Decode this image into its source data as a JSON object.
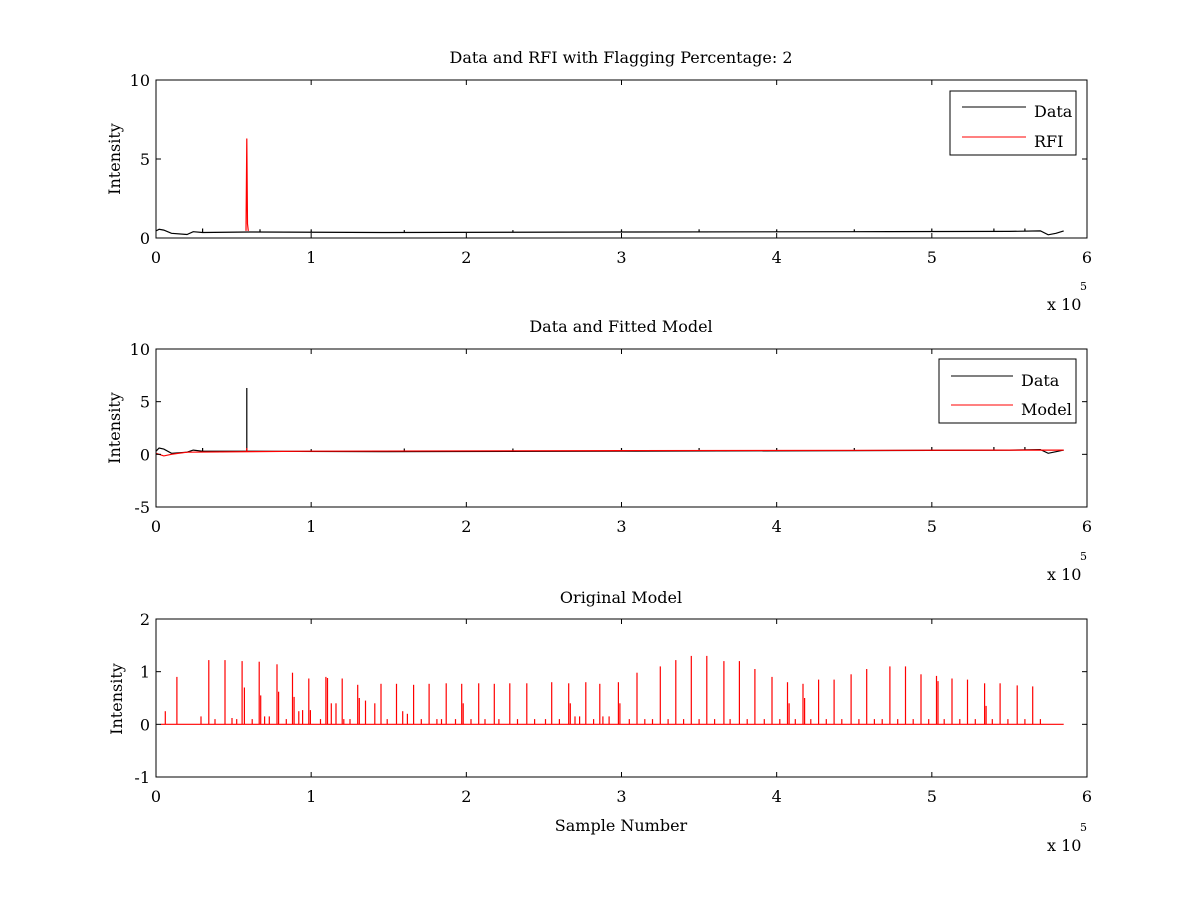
{
  "chart_data": [
    {
      "type": "line",
      "title": "Data and RFI with Flagging Percentage: 2",
      "xlabel": "",
      "ylabel": "Intensity",
      "xlim": [
        0,
        600000
      ],
      "ylim": [
        0,
        10
      ],
      "x_ticks": [
        "0",
        "1",
        "2",
        "3",
        "4",
        "5",
        "6"
      ],
      "y_ticks": [
        "0",
        "5",
        "10"
      ],
      "x_multiplier": {
        "base": "x 10",
        "power": "5"
      },
      "legend": {
        "position": "top-right",
        "entries": [
          {
            "label": "Data",
            "color": "#000000"
          },
          {
            "label": "RFI",
            "color": "#ff0000"
          }
        ]
      },
      "series": [
        {
          "name": "Data",
          "color": "#000000",
          "baseline": [
            [
              0,
              0.45
            ],
            [
              2000,
              0.55
            ],
            [
              5000,
              0.5
            ],
            [
              10000,
              0.3
            ],
            [
              20000,
              0.22
            ],
            [
              24000,
              0.4
            ],
            [
              30000,
              0.35
            ],
            [
              60000,
              0.38
            ],
            [
              150000,
              0.35
            ],
            [
              300000,
              0.38
            ],
            [
              450000,
              0.4
            ],
            [
              550000,
              0.42
            ],
            [
              570000,
              0.45
            ],
            [
              575000,
              0.2
            ],
            [
              580000,
              0.3
            ],
            [
              585000,
              0.45
            ]
          ],
          "spikes": [
            [
              30000,
              0.6
            ],
            [
              67000,
              0.55
            ],
            [
              100000,
              0.55
            ],
            [
              160000,
              0.5
            ],
            [
              230000,
              0.5
            ],
            [
              300000,
              0.55
            ],
            [
              350000,
              0.55
            ],
            [
              400000,
              0.55
            ],
            [
              450000,
              0.55
            ],
            [
              500000,
              0.6
            ],
            [
              540000,
              0.6
            ],
            [
              560000,
              0.6
            ]
          ]
        },
        {
          "name": "RFI",
          "color": "#ff0000",
          "points": [
            [
              58000,
              0.45
            ],
            [
              58500,
              6.3
            ],
            [
              59000,
              0.9
            ],
            [
              59500,
              0.45
            ]
          ]
        }
      ]
    },
    {
      "type": "line",
      "title": "Data and Fitted Model",
      "xlabel": "",
      "ylabel": "Intensity",
      "xlim": [
        0,
        600000
      ],
      "ylim": [
        -5,
        10
      ],
      "x_ticks": [
        "0",
        "1",
        "2",
        "3",
        "4",
        "5",
        "6"
      ],
      "y_ticks": [
        "-5",
        "0",
        "5",
        "10"
      ],
      "x_multiplier": {
        "base": "x 10",
        "power": "5"
      },
      "legend": {
        "position": "top-right",
        "entries": [
          {
            "label": "Data",
            "color": "#000000"
          },
          {
            "label": "Model",
            "color": "#ff0000"
          }
        ]
      },
      "series": [
        {
          "name": "Data",
          "color": "#000000",
          "baseline": [
            [
              0,
              0.3
            ],
            [
              2000,
              0.6
            ],
            [
              5000,
              0.5
            ],
            [
              10000,
              0.1
            ],
            [
              20000,
              0.2
            ],
            [
              24000,
              0.4
            ],
            [
              30000,
              0.3
            ],
            [
              60000,
              0.3
            ],
            [
              150000,
              0.25
            ],
            [
              300000,
              0.3
            ],
            [
              450000,
              0.35
            ],
            [
              550000,
              0.4
            ],
            [
              570000,
              0.45
            ],
            [
              575000,
              0.1
            ],
            [
              580000,
              0.25
            ],
            [
              585000,
              0.4
            ]
          ],
          "spikes": [
            [
              58500,
              6.3
            ],
            [
              30000,
              0.6
            ],
            [
              100000,
              0.5
            ],
            [
              160000,
              0.55
            ],
            [
              230000,
              0.55
            ],
            [
              300000,
              0.6
            ],
            [
              350000,
              0.6
            ],
            [
              400000,
              0.6
            ],
            [
              450000,
              0.6
            ],
            [
              500000,
              0.7
            ],
            [
              540000,
              0.7
            ],
            [
              560000,
              0.7
            ]
          ]
        },
        {
          "name": "Model",
          "color": "#ff0000",
          "baseline": [
            [
              0,
              0.1
            ],
            [
              5000,
              -0.15
            ],
            [
              10000,
              0.0
            ],
            [
              20000,
              0.2
            ],
            [
              100000,
              0.3
            ],
            [
              300000,
              0.35
            ],
            [
              585000,
              0.4
            ]
          ],
          "spikes": [
            [
              58500,
              0.6
            ]
          ]
        }
      ]
    },
    {
      "type": "line",
      "title": "Original Model",
      "xlabel": "Sample Number",
      "ylabel": "Intensity",
      "xlim": [
        0,
        600000
      ],
      "ylim": [
        -1,
        2
      ],
      "x_ticks": [
        "0",
        "1",
        "2",
        "3",
        "4",
        "5",
        "6"
      ],
      "y_ticks": [
        "-1",
        "0",
        "1",
        "2"
      ],
      "x_multiplier": {
        "base": "x 10",
        "power": "5"
      },
      "legend": null,
      "series": [
        {
          "color": "#ff0000",
          "baseline": [
            [
              3000,
              0.0
            ],
            [
              585000,
              0.0
            ]
          ],
          "spikes": [
            [
              6000,
              0.25
            ],
            [
              13500,
              0.9
            ],
            [
              29000,
              0.15
            ],
            [
              34000,
              1.22
            ],
            [
              38000,
              0.1
            ],
            [
              44500,
              1.22
            ],
            [
              49000,
              0.12
            ],
            [
              52000,
              0.1
            ],
            [
              55500,
              1.2
            ],
            [
              57000,
              0.7
            ],
            [
              62000,
              0.1
            ],
            [
              66500,
              1.19
            ],
            [
              67500,
              0.55
            ],
            [
              70000,
              0.15
            ],
            [
              73000,
              0.15
            ],
            [
              78000,
              1.14
            ],
            [
              79000,
              0.62
            ],
            [
              84000,
              0.1
            ],
            [
              88000,
              0.98
            ],
            [
              89000,
              0.52
            ],
            [
              92000,
              0.25
            ],
            [
              94500,
              0.27
            ],
            [
              98500,
              0.87
            ],
            [
              99500,
              0.27
            ],
            [
              106000,
              0.1
            ],
            [
              109500,
              0.9
            ],
            [
              110500,
              0.88
            ],
            [
              113000,
              0.4
            ],
            [
              116000,
              0.4
            ],
            [
              120000,
              0.87
            ],
            [
              121000,
              0.1
            ],
            [
              125000,
              0.1
            ],
            [
              130000,
              0.75
            ],
            [
              131000,
              0.5
            ],
            [
              135000,
              0.45
            ],
            [
              141000,
              0.4
            ],
            [
              145000,
              0.77
            ],
            [
              149000,
              0.1
            ],
            [
              155000,
              0.77
            ],
            [
              159000,
              0.25
            ],
            [
              162000,
              0.2
            ],
            [
              166000,
              0.75
            ],
            [
              171000,
              0.1
            ],
            [
              176000,
              0.77
            ],
            [
              181000,
              0.1
            ],
            [
              184000,
              0.1
            ],
            [
              187000,
              0.78
            ],
            [
              193000,
              0.1
            ],
            [
              197000,
              0.77
            ],
            [
              198000,
              0.4
            ],
            [
              203000,
              0.1
            ],
            [
              208000,
              0.78
            ],
            [
              212000,
              0.1
            ],
            [
              218000,
              0.77
            ],
            [
              221000,
              0.1
            ],
            [
              228000,
              0.78
            ],
            [
              233000,
              0.1
            ],
            [
              239000,
              0.78
            ],
            [
              244000,
              0.1
            ],
            [
              251000,
              0.1
            ],
            [
              255000,
              0.8
            ],
            [
              260000,
              0.1
            ],
            [
              266000,
              0.78
            ],
            [
              267000,
              0.4
            ],
            [
              270000,
              0.15
            ],
            [
              273000,
              0.15
            ],
            [
              277000,
              0.8
            ],
            [
              282000,
              0.1
            ],
            [
              286000,
              0.77
            ],
            [
              288000,
              0.15
            ],
            [
              292000,
              0.15
            ],
            [
              298000,
              0.8
            ],
            [
              299000,
              0.4
            ],
            [
              305000,
              0.1
            ],
            [
              310000,
              0.98
            ],
            [
              315000,
              0.1
            ],
            [
              320000,
              0.1
            ],
            [
              325000,
              1.1
            ],
            [
              330000,
              0.1
            ],
            [
              335000,
              1.22
            ],
            [
              340000,
              0.1
            ],
            [
              345000,
              1.3
            ],
            [
              350000,
              0.1
            ],
            [
              355000,
              1.3
            ],
            [
              360000,
              0.1
            ],
            [
              366000,
              1.2
            ],
            [
              370000,
              0.1
            ],
            [
              376000,
              1.2
            ],
            [
              381000,
              0.1
            ],
            [
              386000,
              1.05
            ],
            [
              392000,
              0.1
            ],
            [
              397000,
              0.9
            ],
            [
              402000,
              0.1
            ],
            [
              407000,
              0.8
            ],
            [
              408000,
              0.4
            ],
            [
              412000,
              0.1
            ],
            [
              417000,
              0.77
            ],
            [
              418000,
              0.5
            ],
            [
              422000,
              0.1
            ],
            [
              427000,
              0.85
            ],
            [
              432000,
              0.1
            ],
            [
              437000,
              0.85
            ],
            [
              442000,
              0.1
            ],
            [
              448000,
              0.95
            ],
            [
              453000,
              0.1
            ],
            [
              458000,
              1.05
            ],
            [
              463000,
              0.1
            ],
            [
              468000,
              0.1
            ],
            [
              473000,
              1.1
            ],
            [
              478000,
              0.1
            ],
            [
              483000,
              1.1
            ],
            [
              488000,
              0.1
            ],
            [
              493000,
              0.95
            ],
            [
              498000,
              0.1
            ],
            [
              503000,
              0.92
            ],
            [
              504000,
              0.82
            ],
            [
              508000,
              0.1
            ],
            [
              513000,
              0.87
            ],
            [
              518000,
              0.1
            ],
            [
              523000,
              0.85
            ],
            [
              528000,
              0.1
            ],
            [
              534000,
              0.78
            ],
            [
              535000,
              0.35
            ],
            [
              539000,
              0.1
            ],
            [
              544000,
              0.78
            ],
            [
              549000,
              0.1
            ],
            [
              555000,
              0.74
            ],
            [
              560000,
              0.1
            ],
            [
              565000,
              0.72
            ],
            [
              570000,
              0.1
            ]
          ]
        }
      ]
    }
  ]
}
